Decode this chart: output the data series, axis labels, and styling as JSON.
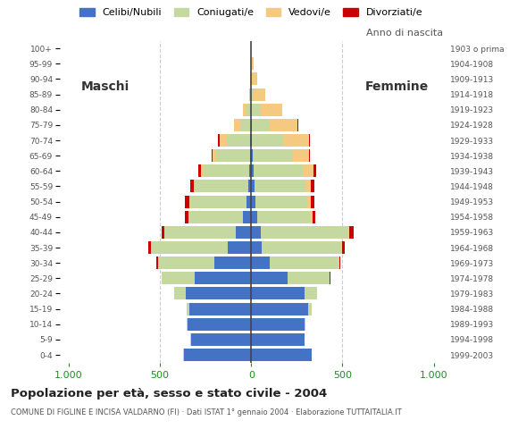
{
  "age_groups": [
    "0-4",
    "5-9",
    "10-14",
    "15-19",
    "20-24",
    "25-29",
    "30-34",
    "35-39",
    "40-44",
    "45-49",
    "50-54",
    "55-59",
    "60-64",
    "65-69",
    "70-74",
    "75-79",
    "80-84",
    "85-89",
    "90-94",
    "95-99",
    "100+"
  ],
  "birth_years": [
    "1999-2003",
    "1994-1998",
    "1989-1993",
    "1984-1988",
    "1979-1983",
    "1974-1978",
    "1969-1973",
    "1964-1968",
    "1959-1963",
    "1954-1958",
    "1949-1953",
    "1944-1948",
    "1939-1943",
    "1934-1938",
    "1929-1933",
    "1924-1928",
    "1919-1923",
    "1914-1918",
    "1909-1913",
    "1904-1908",
    "1903 o prima"
  ],
  "male_celibe": [
    370,
    330,
    350,
    340,
    360,
    310,
    200,
    130,
    85,
    45,
    25,
    18,
    12,
    8,
    5,
    2,
    0,
    0,
    0,
    0,
    0
  ],
  "male_coniugato": [
    1,
    2,
    5,
    15,
    60,
    180,
    310,
    420,
    390,
    295,
    310,
    290,
    250,
    185,
    130,
    60,
    25,
    8,
    3,
    0,
    0
  ],
  "male_vedovo": [
    0,
    0,
    0,
    0,
    0,
    0,
    0,
    1,
    2,
    3,
    5,
    8,
    15,
    20,
    40,
    30,
    20,
    5,
    2,
    0,
    0
  ],
  "male_divorziato": [
    0,
    0,
    0,
    0,
    1,
    2,
    8,
    12,
    15,
    20,
    22,
    18,
    12,
    5,
    8,
    4,
    0,
    0,
    0,
    0,
    0
  ],
  "female_nubile": [
    330,
    290,
    290,
    310,
    290,
    200,
    100,
    55,
    50,
    35,
    25,
    18,
    12,
    8,
    5,
    2,
    0,
    0,
    0,
    0,
    0
  ],
  "female_coniugata": [
    1,
    2,
    5,
    20,
    70,
    230,
    380,
    440,
    480,
    285,
    280,
    280,
    270,
    220,
    170,
    100,
    50,
    15,
    5,
    2,
    0
  ],
  "female_vedova": [
    0,
    0,
    0,
    0,
    1,
    1,
    2,
    3,
    8,
    15,
    20,
    30,
    60,
    90,
    140,
    150,
    120,
    60,
    30,
    10,
    0
  ],
  "female_divorziata": [
    0,
    0,
    0,
    0,
    1,
    3,
    8,
    12,
    25,
    18,
    22,
    20,
    15,
    5,
    8,
    5,
    2,
    0,
    0,
    0,
    0
  ],
  "colors": {
    "celibe_nubile": "#4472C4",
    "coniugato_a": "#C5D8A0",
    "vedovo_a": "#F5C97F",
    "divorziato_a": "#CC0000"
  },
  "xlim": 1050,
  "title": "Popolazione per età, sesso e stato civile - 2004",
  "subtitle": "COMUNE DI FIGLINE E INCISA VALDARNO (FI) · Dati ISTAT 1° gennaio 2004 · Elaborazione TUTTAITALIA.IT",
  "legend_labels": [
    "Celibi/Nubili",
    "Coniugati/e",
    "Vedovi/e",
    "Divorziati/e"
  ],
  "x_ticks_pos": [
    -1000,
    -500,
    0,
    500,
    1000
  ],
  "x_tick_labels": [
    "1.000",
    "500",
    "0",
    "500",
    "1.000"
  ],
  "background_color": "#ffffff",
  "grid_color": "#cccccc",
  "bar_height": 0.82
}
